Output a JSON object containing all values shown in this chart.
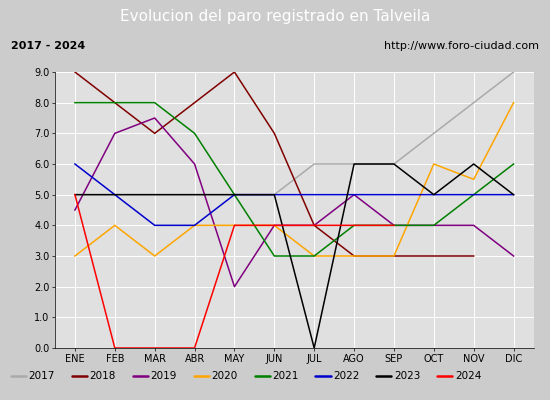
{
  "title": "Evolucion del paro registrado en Talveila",
  "subtitle_left": "2017 - 2024",
  "subtitle_right": "http://www.foro-ciudad.com",
  "months": [
    "ENE",
    "FEB",
    "MAR",
    "ABR",
    "MAY",
    "JUN",
    "JUL",
    "AGO",
    "SEP",
    "OCT",
    "NOV",
    "DIC"
  ],
  "ylim": [
    0.0,
    9.0
  ],
  "yticks": [
    0.0,
    1.0,
    2.0,
    3.0,
    4.0,
    5.0,
    6.0,
    7.0,
    8.0,
    9.0
  ],
  "series": {
    "2017": {
      "color": "#aaaaaa",
      "data": [
        5.0,
        5.0,
        5.0,
        5.0,
        5.0,
        5.0,
        6.0,
        6.0,
        6.0,
        7.0,
        8.0,
        9.0
      ]
    },
    "2018": {
      "color": "#800000",
      "data": [
        9.0,
        8.0,
        7.0,
        8.0,
        9.0,
        7.0,
        4.0,
        3.0,
        3.0,
        3.0,
        3.0,
        null
      ]
    },
    "2019": {
      "color": "#800080",
      "data": [
        4.5,
        7.0,
        7.5,
        6.0,
        2.0,
        4.0,
        4.0,
        5.0,
        4.0,
        4.0,
        4.0,
        3.0
      ]
    },
    "2020": {
      "color": "#ffa500",
      "data": [
        3.0,
        4.0,
        3.0,
        4.0,
        4.0,
        4.0,
        3.0,
        3.0,
        3.0,
        6.0,
        5.5,
        8.0
      ]
    },
    "2021": {
      "color": "#008000",
      "data": [
        8.0,
        8.0,
        8.0,
        7.0,
        5.0,
        3.0,
        3.0,
        4.0,
        4.0,
        4.0,
        5.0,
        6.0
      ]
    },
    "2022": {
      "color": "#0000cd",
      "data": [
        6.0,
        5.0,
        4.0,
        4.0,
        5.0,
        5.0,
        5.0,
        5.0,
        5.0,
        5.0,
        5.0,
        5.0
      ]
    },
    "2023": {
      "color": "#000000",
      "data": [
        5.0,
        5.0,
        5.0,
        5.0,
        5.0,
        5.0,
        0.0,
        6.0,
        6.0,
        5.0,
        6.0,
        5.0
      ]
    },
    "2024": {
      "color": "#ff0000",
      "data": [
        5.0,
        0.0,
        0.0,
        0.0,
        4.0,
        4.0,
        4.0,
        4.0,
        4.0,
        null,
        null,
        null
      ]
    }
  },
  "background_color": "#cccccc",
  "plot_bg_color": "#e0e0e0",
  "title_bg_color": "#4472c4",
  "title_color": "#ffffff",
  "title_fontsize": 11,
  "tick_fontsize": 7,
  "legend_fontsize": 7.5,
  "header_fontsize": 8
}
